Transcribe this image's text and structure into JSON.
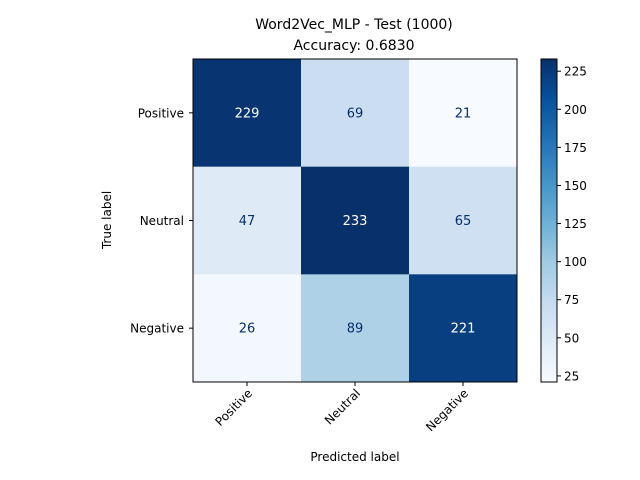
{
  "chart_data": {
    "type": "heatmap",
    "title_line1": "Word2Vec_MLP - Test (1000)",
    "title_line2": "Accuracy: 0.6830",
    "xlabel": "Predicted label",
    "ylabel": "True label",
    "x_categories": [
      "Positive",
      "Neutral",
      "Negative"
    ],
    "y_categories": [
      "Positive",
      "Neutral",
      "Negative"
    ],
    "matrix": [
      [
        229,
        69,
        21
      ],
      [
        47,
        233,
        65
      ],
      [
        26,
        89,
        221
      ]
    ],
    "colormap": "Blues",
    "colorbar": {
      "vmin": 21,
      "vmax": 233,
      "ticks": [
        25,
        50,
        75,
        100,
        125,
        150,
        175,
        200,
        225
      ]
    }
  }
}
